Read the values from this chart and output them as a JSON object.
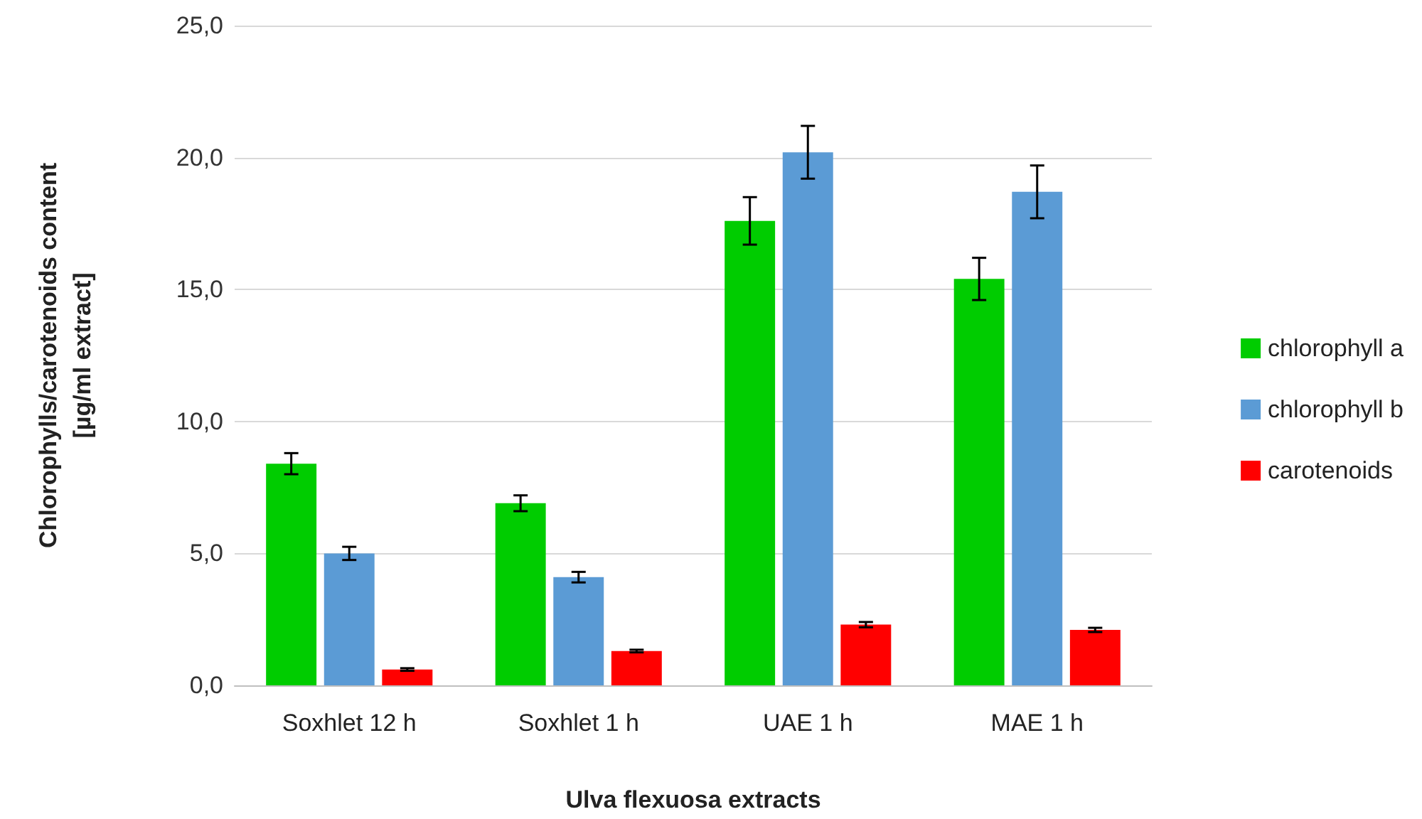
{
  "chart_data": {
    "type": "bar",
    "xlabel": "Ulva flexuosa extracts",
    "ylabel": "Chlorophylls/carotenoids content\n[µg/ml extract]",
    "categories": [
      "Soxhlet 12 h",
      "Soxhlet 1 h",
      "UAE 1 h",
      "MAE 1 h"
    ],
    "series": [
      {
        "name": "chlorophyll a",
        "color": "#00cc00",
        "values": [
          8.4,
          6.9,
          17.6,
          15.4
        ],
        "errors": [
          0.4,
          0.3,
          0.9,
          0.8
        ]
      },
      {
        "name": "chlorophyll b",
        "color": "#5b9bd5",
        "values": [
          5.0,
          4.1,
          20.2,
          18.7
        ],
        "errors": [
          0.25,
          0.2,
          1.0,
          1.0
        ]
      },
      {
        "name": "carotenoids",
        "color": "#ff0000",
        "values": [
          0.6,
          1.3,
          2.3,
          2.1
        ],
        "errors": [
          0.05,
          0.05,
          0.1,
          0.08
        ]
      }
    ],
    "ylim": [
      0,
      25
    ],
    "yticks": [
      {
        "value": 0,
        "label": "0,0"
      },
      {
        "value": 5,
        "label": "5,0"
      },
      {
        "value": 10,
        "label": "10,0"
      },
      {
        "value": 15,
        "label": "15,0"
      },
      {
        "value": 20,
        "label": "20,0"
      },
      {
        "value": 25,
        "label": "25,0"
      }
    ],
    "grid": "y",
    "legend": "right"
  }
}
